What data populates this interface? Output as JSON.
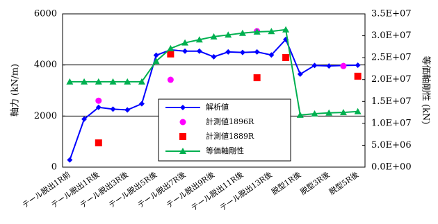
{
  "chart_data": {
    "type": "line",
    "y_label": "軸力 (kN/m)",
    "y2_label": "等価軸剛性 (kN)",
    "categories": [
      "テール脱出1R前",
      null,
      "テール脱出1R後",
      null,
      "テール脱出3R後",
      null,
      "テール脱出5R後",
      null,
      "テール脱出7R後",
      null,
      "テール脱出9R後",
      null,
      "テール脱出11R後",
      null,
      "テール脱出13R後",
      null,
      "脱型1R後",
      null,
      "脱型3R後",
      null,
      "脱型5R後"
    ],
    "ylim": [
      0,
      6000
    ],
    "yticks": [
      0,
      2000,
      4000,
      6000
    ],
    "y2lim": [
      0,
      35000000
    ],
    "y2ticks": [
      {
        "value": 0,
        "label": "0.0E+00"
      },
      {
        "value": 5000000,
        "label": "5.0E+06"
      },
      {
        "value": 10000000,
        "label": "1.0E+07"
      },
      {
        "value": 15000000,
        "label": "1.5E+07"
      },
      {
        "value": 20000000,
        "label": "2.0E+07"
      },
      {
        "value": 25000000,
        "label": "2.5E+07"
      },
      {
        "value": 30000000,
        "label": "3.0E+07"
      },
      {
        "value": 35000000,
        "label": "3.5E+07"
      }
    ],
    "grid": true,
    "series": [
      {
        "name": "解析値",
        "color": "#0000ff",
        "marker": "diamond",
        "line": true,
        "values": [
          280,
          1880,
          2340,
          2270,
          2240,
          2480,
          4380,
          4590,
          4540,
          4540,
          4320,
          4510,
          4490,
          4510,
          4390,
          5000,
          3640,
          3980,
          3960,
          3980,
          3990
        ]
      },
      {
        "name": "計測値1896R",
        "color": "#ff00ff",
        "marker": "circle",
        "line": false,
        "values": [
          null,
          null,
          2600,
          null,
          null,
          null,
          null,
          3420,
          null,
          null,
          null,
          null,
          null,
          5320,
          null,
          null,
          null,
          null,
          null,
          3960,
          null
        ]
      },
      {
        "name": "計測値1889R",
        "color": "#ff0000",
        "marker": "square",
        "line": false,
        "values": [
          null,
          null,
          950,
          null,
          null,
          null,
          null,
          4430,
          null,
          null,
          null,
          null,
          null,
          3500,
          null,
          4290,
          null,
          null,
          null,
          null,
          3560
        ]
      },
      {
        "name": "等価軸剛性",
        "color": "#00b050",
        "marker": "triangle",
        "line": true,
        "axis": "y2",
        "values": [
          19500000,
          19500000,
          19500000,
          19500000,
          19500000,
          19500000,
          24200000,
          27100000,
          28400000,
          29100000,
          29800000,
          30200000,
          30600000,
          30900000,
          31000000,
          31400000,
          11900000,
          12200000,
          12400000,
          12500000,
          12700000
        ]
      }
    ]
  }
}
